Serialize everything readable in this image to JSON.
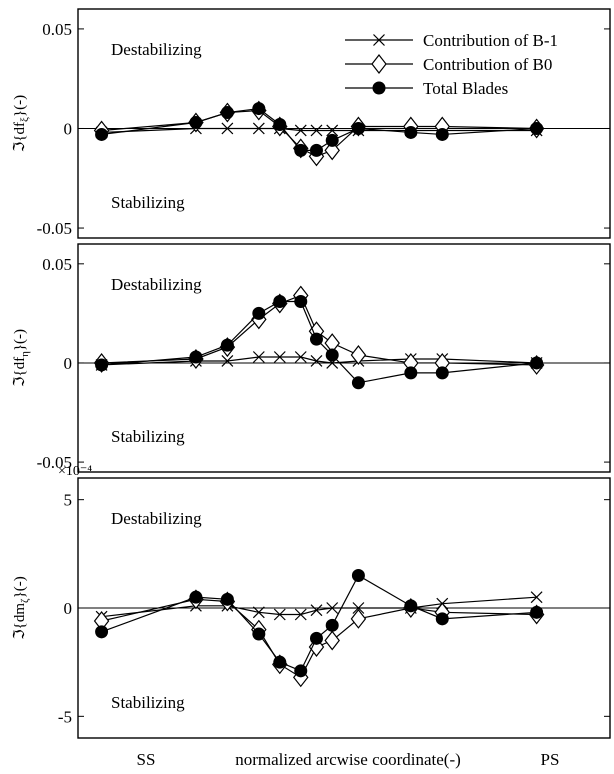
{
  "chart_data": [
    {
      "type": "line",
      "y_tick_labels": [
        "0.05",
        "0",
        "-0.05"
      ],
      "y_ticks": [
        0.05,
        0,
        -0.05
      ],
      "ylim": [
        -0.055,
        0.06
      ],
      "ylabel": "ℑ{df_ξ}(-)",
      "region_labels": {
        "top": "Destabilizing",
        "bottom": "Stabilizing"
      },
      "legend": {
        "placement": "top-right",
        "entries": [
          "Contribution of B-1",
          "Contribution of B0",
          "Total Blades"
        ]
      },
      "x": [
        0.0,
        0.18,
        0.24,
        0.3,
        0.34,
        0.38,
        0.41,
        0.44,
        0.49,
        0.59,
        0.65,
        0.83
      ],
      "series": [
        {
          "name": "Contribution of B-1",
          "marker": "x",
          "values": [
            -0.002,
            0.0,
            0.0,
            0.0,
            0.0,
            -0.001,
            -0.001,
            -0.001,
            -0.001,
            -0.001,
            -0.001,
            -0.001
          ]
        },
        {
          "name": "Contribution of B0",
          "marker": "diamond",
          "values": [
            -0.001,
            0.003,
            0.008,
            0.009,
            0.001,
            -0.01,
            -0.014,
            -0.011,
            0.001,
            0.001,
            0.001,
            0.0
          ]
        },
        {
          "name": "Total Blades",
          "marker": "circle",
          "values": [
            -0.003,
            0.003,
            0.008,
            0.01,
            0.002,
            -0.011,
            -0.011,
            -0.006,
            0.0,
            -0.002,
            -0.003,
            0.0
          ]
        }
      ]
    },
    {
      "type": "line",
      "y_tick_labels": [
        "0.05",
        "0",
        "-0.05"
      ],
      "y_ticks": [
        0.05,
        0,
        -0.05
      ],
      "ylim": [
        -0.055,
        0.06
      ],
      "ylabel": "ℑ{df_η}(-)",
      "region_labels": {
        "top": "Destabilizing",
        "bottom": "Stabilizing"
      },
      "x": [
        0.0,
        0.18,
        0.24,
        0.3,
        0.34,
        0.38,
        0.41,
        0.44,
        0.49,
        0.59,
        0.65,
        0.83
      ],
      "series": [
        {
          "name": "Contribution of B-1",
          "marker": "x",
          "values": [
            -0.001,
            0.001,
            0.001,
            0.003,
            0.003,
            0.003,
            0.001,
            0.0,
            0.001,
            0.002,
            0.002,
            0.0
          ]
        },
        {
          "name": "Contribution of B0",
          "marker": "diamond",
          "values": [
            0.0,
            0.002,
            0.008,
            0.022,
            0.03,
            0.034,
            0.016,
            0.01,
            0.004,
            0.0,
            0.0,
            -0.001
          ]
        },
        {
          "name": "Total Blades",
          "marker": "circle",
          "values": [
            -0.001,
            0.003,
            0.009,
            0.025,
            0.031,
            0.031,
            0.012,
            0.004,
            -0.01,
            -0.005,
            -0.005,
            0.0
          ]
        }
      ]
    },
    {
      "type": "line",
      "y_tick_labels": [
        "5",
        "0",
        "-5"
      ],
      "y_ticks": [
        5,
        0,
        -5
      ],
      "exponent_label": "×10⁻⁴",
      "ylim": [
        -6,
        6
      ],
      "ylabel": "ℑ{dm_ζ}(-)",
      "region_labels": {
        "top": "Destabilizing",
        "bottom": "Stabilizing"
      },
      "x_tick_labels": [
        "SS",
        "normalized arcwise coordinate(-)",
        "PS"
      ],
      "x": [
        0.0,
        0.18,
        0.24,
        0.3,
        0.34,
        0.38,
        0.41,
        0.44,
        0.49,
        0.59,
        0.65,
        0.83
      ],
      "series": [
        {
          "name": "Contribution of B-1",
          "marker": "x",
          "values": [
            -0.4,
            0.1,
            0.1,
            -0.2,
            -0.3,
            -0.3,
            -0.1,
            0.0,
            0.0,
            0.0,
            0.2,
            0.5
          ]
        },
        {
          "name": "Contribution of B0",
          "marker": "diamond",
          "values": [
            -0.6,
            0.4,
            0.3,
            -1.0,
            -2.6,
            -3.2,
            -1.8,
            -1.5,
            -0.5,
            0.0,
            -0.2,
            -0.3
          ]
        },
        {
          "name": "Total Blades",
          "marker": "circle",
          "values": [
            -1.1,
            0.5,
            0.4,
            -1.2,
            -2.5,
            -2.9,
            -1.4,
            -0.8,
            1.5,
            0.1,
            -0.5,
            -0.2
          ]
        }
      ]
    }
  ]
}
